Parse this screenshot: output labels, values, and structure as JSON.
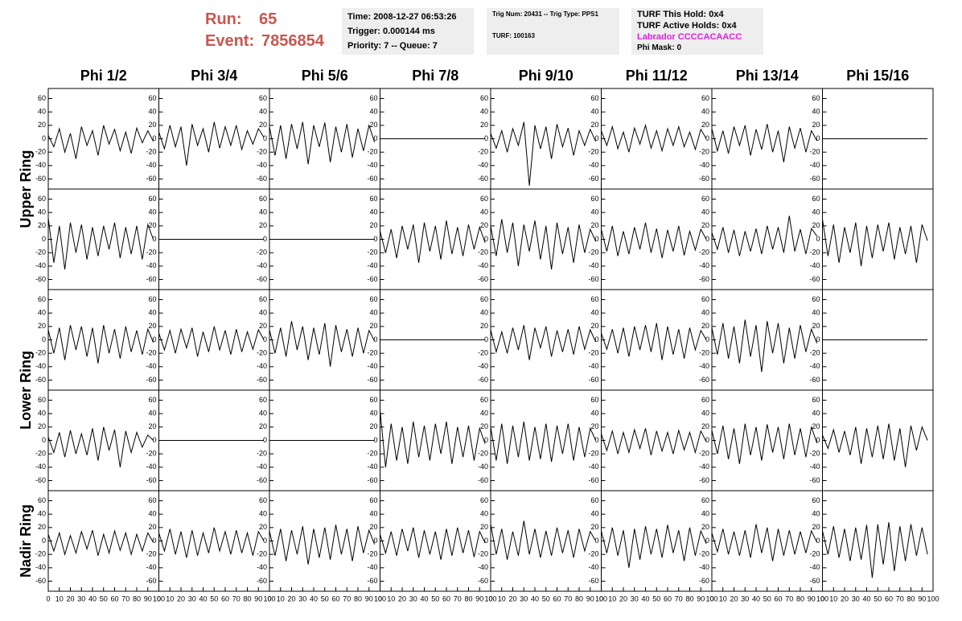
{
  "header": {
    "run_label": "Run:",
    "run": "65",
    "event_label": "Event:",
    "event": "7856854",
    "box1": [
      "Time: 2008-12-27 06:53:26",
      "Trigger: 0.000144 ms",
      "Priority: 7 -- Queue: 7"
    ],
    "box2": [
      "Trig Num: 20431 -- Trig Type: PPS1",
      "TURF: 100163"
    ],
    "box3": [
      "TURF This Hold: 0x4",
      "TURF Active Holds: 0x4",
      "Labrador CCCCACAACC",
      "Phi Mask: 0"
    ]
  },
  "chart_data": {
    "type": "line",
    "columns": [
      "Phi 1/2",
      "Phi 3/4",
      "Phi 5/6",
      "Phi 7/8",
      "Phi 9/10",
      "Phi 11/12",
      "Phi 13/14",
      "Phi 15/16"
    ],
    "rings": [
      "Upper Ring",
      "Lower Ring",
      "Nadir Ring"
    ],
    "color": "#000000",
    "xlim": [
      0,
      100
    ],
    "ylim": [
      -75,
      75
    ],
    "xticks": [
      0,
      10,
      20,
      30,
      40,
      50,
      60,
      70,
      80,
      90,
      100
    ],
    "yticks": [
      -60,
      -40,
      -20,
      0,
      20,
      40,
      60
    ],
    "x": [
      0,
      5,
      10,
      15,
      20,
      25,
      30,
      35,
      40,
      45,
      50,
      55,
      60,
      65,
      70,
      75,
      80,
      85,
      90,
      95
    ],
    "panels": [
      [
        5,
        -12,
        15,
        -20,
        8,
        -30,
        18,
        -10,
        12,
        -25,
        20,
        -8,
        14,
        -18,
        10,
        -22,
        16,
        -6,
        12,
        -4
      ],
      [
        10,
        -15,
        20,
        -12,
        18,
        -40,
        22,
        -10,
        15,
        -20,
        25,
        -14,
        18,
        -10,
        20,
        -16,
        12,
        -8,
        15,
        2
      ],
      [
        18,
        -25,
        20,
        -30,
        22,
        -15,
        25,
        -38,
        20,
        -12,
        24,
        -35,
        18,
        -20,
        22,
        -28,
        15,
        -18,
        20,
        -5
      ],
      [
        0,
        0,
        0,
        0,
        0,
        0,
        0,
        0,
        0,
        0,
        0,
        0,
        0,
        0,
        0,
        0,
        0,
        0,
        0,
        0
      ],
      [
        8,
        -14,
        12,
        -20,
        15,
        -10,
        25,
        -70,
        20,
        -15,
        18,
        -30,
        22,
        -12,
        16,
        -25,
        12,
        -10,
        14,
        -4
      ],
      [
        12,
        -10,
        18,
        -15,
        10,
        -20,
        16,
        -8,
        20,
        -14,
        12,
        -18,
        15,
        -10,
        18,
        -12,
        10,
        -16,
        14,
        0
      ],
      [
        15,
        -18,
        12,
        -22,
        18,
        -10,
        20,
        -25,
        14,
        -16,
        22,
        -20,
        12,
        -35,
        18,
        -14,
        16,
        -20,
        12,
        -3
      ],
      [
        0,
        0,
        0,
        0,
        0,
        0,
        0,
        0,
        0,
        0,
        0,
        0,
        0,
        0,
        0,
        0,
        0,
        0,
        0,
        0
      ],
      [
        32,
        -35,
        20,
        -45,
        25,
        -20,
        22,
        -30,
        18,
        -25,
        20,
        -15,
        25,
        -28,
        18,
        -22,
        20,
        -30,
        22,
        0
      ],
      [
        0,
        0,
        0,
        0,
        0,
        0,
        0,
        0,
        0,
        0,
        0,
        0,
        0,
        0,
        0,
        0,
        0,
        0,
        0,
        0
      ],
      [
        0,
        0,
        0,
        0,
        0,
        0,
        0,
        0,
        0,
        0,
        0,
        0,
        0,
        0,
        0,
        0,
        0,
        0,
        0,
        0
      ],
      [
        12,
        -20,
        15,
        -28,
        20,
        -15,
        22,
        -35,
        25,
        -18,
        20,
        -30,
        28,
        -22,
        18,
        -25,
        22,
        -15,
        18,
        -5
      ],
      [
        20,
        -25,
        30,
        -20,
        25,
        -40,
        22,
        -18,
        28,
        -30,
        20,
        -45,
        25,
        -22,
        18,
        -35,
        22,
        -20,
        15,
        -3
      ],
      [
        15,
        -18,
        20,
        -25,
        12,
        -22,
        18,
        -15,
        25,
        -20,
        16,
        -28,
        14,
        -18,
        20,
        -24,
        12,
        -16,
        15,
        0
      ],
      [
        10,
        -15,
        18,
        -20,
        14,
        -25,
        12,
        -18,
        16,
        -22,
        20,
        -15,
        18,
        -20,
        35,
        -18,
        15,
        -22,
        16,
        5
      ],
      [
        30,
        -25,
        22,
        -35,
        18,
        -20,
        25,
        -40,
        20,
        -28,
        22,
        -18,
        25,
        -30,
        18,
        -22,
        20,
        -35,
        22,
        -2
      ],
      [
        15,
        -20,
        18,
        -30,
        22,
        -15,
        20,
        -25,
        18,
        -35,
        22,
        -20,
        16,
        -28,
        20,
        -18,
        14,
        -22,
        16,
        -4
      ],
      [
        10,
        -15,
        14,
        -20,
        16,
        -12,
        18,
        -25,
        12,
        -18,
        20,
        -15,
        14,
        -22,
        16,
        -18,
        12,
        -14,
        15,
        0
      ],
      [
        15,
        -20,
        18,
        -25,
        28,
        -15,
        20,
        -30,
        18,
        -22,
        25,
        -40,
        22,
        -18,
        16,
        -25,
        18,
        -20,
        14,
        -2
      ],
      [
        0,
        0,
        0,
        0,
        0,
        0,
        0,
        0,
        0,
        0,
        0,
        0,
        0,
        0,
        0,
        0,
        0,
        0,
        0,
        0
      ],
      [
        15,
        -18,
        12,
        -20,
        18,
        -15,
        22,
        -30,
        18,
        -12,
        20,
        -25,
        14,
        -18,
        16,
        -22,
        20,
        -14,
        15,
        -3
      ],
      [
        10,
        -14,
        16,
        -20,
        18,
        -25,
        20,
        -15,
        22,
        -18,
        25,
        -30,
        20,
        -22,
        16,
        -28,
        18,
        -15,
        14,
        0
      ],
      [
        18,
        -22,
        25,
        -28,
        20,
        -35,
        30,
        -25,
        22,
        -48,
        28,
        -20,
        25,
        -35,
        18,
        -28,
        22,
        -18,
        16,
        -5
      ],
      [
        0,
        0,
        0,
        0,
        0,
        0,
        0,
        0,
        0,
        0,
        0,
        0,
        0,
        0,
        0,
        0,
        0,
        0,
        0,
        0
      ],
      [
        5,
        -18,
        12,
        -25,
        15,
        -20,
        10,
        -22,
        18,
        -30,
        20,
        -15,
        16,
        -40,
        14,
        -18,
        12,
        -10,
        8,
        0
      ],
      [
        0,
        0,
        0,
        0,
        0,
        0,
        0,
        0,
        0,
        0,
        0,
        0,
        0,
        0,
        0,
        0,
        0,
        0,
        0,
        0
      ],
      [
        0,
        0,
        0,
        0,
        0,
        0,
        0,
        0,
        0,
        0,
        0,
        0,
        0,
        0,
        0,
        0,
        0,
        0,
        0,
        0
      ],
      [
        45,
        -40,
        25,
        -30,
        20,
        -35,
        28,
        -25,
        22,
        -30,
        25,
        -20,
        28,
        -35,
        20,
        -25,
        22,
        -30,
        18,
        -5
      ],
      [
        20,
        -30,
        25,
        -35,
        22,
        -25,
        28,
        -30,
        20,
        -28,
        25,
        -32,
        22,
        -20,
        25,
        -30,
        20,
        -25,
        18,
        0
      ],
      [
        10,
        -15,
        14,
        -20,
        12,
        -18,
        16,
        -12,
        18,
        -22,
        14,
        -16,
        12,
        -20,
        15,
        -14,
        12,
        -18,
        14,
        -2
      ],
      [
        15,
        -20,
        22,
        -28,
        18,
        -35,
        25,
        -22,
        20,
        -30,
        24,
        -18,
        20,
        -28,
        25,
        -22,
        18,
        -25,
        20,
        -4
      ],
      [
        8,
        -12,
        16,
        -18,
        14,
        -22,
        20,
        -35,
        18,
        -25,
        22,
        -28,
        25,
        -30,
        18,
        -40,
        22,
        -15,
        20,
        0
      ],
      [
        10,
        -15,
        12,
        -20,
        8,
        -18,
        14,
        -12,
        16,
        -22,
        10,
        -18,
        15,
        -14,
        12,
        -20,
        10,
        -15,
        12,
        -2
      ],
      [
        12,
        -15,
        18,
        -20,
        14,
        -25,
        16,
        -22,
        12,
        -18,
        20,
        -15,
        14,
        -20,
        16,
        -18,
        12,
        -22,
        14,
        0
      ],
      [
        15,
        -22,
        18,
        -30,
        16,
        -20,
        22,
        -35,
        18,
        -25,
        20,
        -28,
        24,
        -20,
        18,
        -30,
        22,
        -18,
        16,
        -5
      ],
      [
        10,
        -18,
        14,
        -22,
        18,
        -15,
        20,
        -25,
        16,
        -20,
        14,
        -28,
        18,
        -22,
        20,
        -18,
        16,
        -24,
        14,
        -3
      ],
      [
        25,
        -20,
        18,
        -28,
        14,
        -22,
        30,
        -20,
        18,
        -25,
        15,
        -22,
        20,
        -18,
        16,
        -25,
        18,
        -15,
        14,
        0
      ],
      [
        15,
        -18,
        20,
        -22,
        16,
        -40,
        18,
        -28,
        22,
        -20,
        18,
        -25,
        24,
        -18,
        16,
        -30,
        20,
        -22,
        15,
        -4
      ],
      [
        12,
        -16,
        18,
        -20,
        14,
        -22,
        16,
        -25,
        25,
        -18,
        20,
        -30,
        18,
        -22,
        16,
        -20,
        14,
        -18,
        15,
        -2
      ],
      [
        15,
        -20,
        22,
        -25,
        18,
        -30,
        20,
        -28,
        24,
        -55,
        25,
        -35,
        28,
        -45,
        22,
        -30,
        25,
        -22,
        20,
        -20
      ]
    ]
  }
}
